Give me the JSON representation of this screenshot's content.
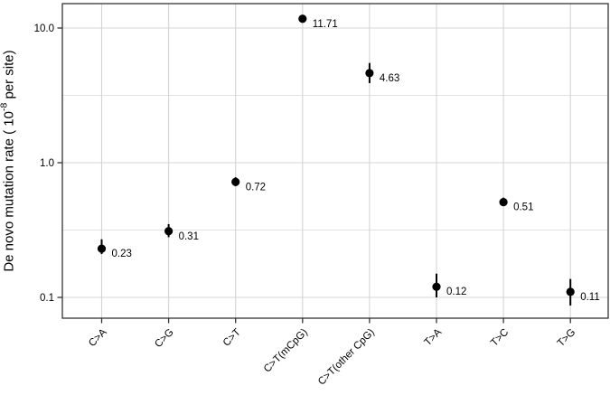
{
  "chart_data": {
    "type": "scatter",
    "title": "",
    "xlabel": "",
    "ylabel_parts": {
      "prefix": "De novo mutation rate ( 10",
      "superscript": "-8",
      "suffix": " per site)"
    },
    "yscale": "log10",
    "ylim": [
      0.07,
      15.2
    ],
    "yticks": [
      {
        "value": 10.0,
        "label": "10.0"
      },
      {
        "value": 1.0,
        "label": "1.0"
      },
      {
        "value": 0.1,
        "label": "0.1"
      }
    ],
    "minor_gridlines": [
      3.1623,
      0.31623
    ],
    "categories": [
      "C>A",
      "C>G",
      "C>T",
      "C>T(mCpG)",
      "C>T(other CpG)",
      "T>A",
      "T>C",
      "T>G"
    ],
    "points": [
      {
        "category": "C>A",
        "value": 0.23,
        "label": "0.23",
        "ci_low": 0.21,
        "ci_high": 0.27
      },
      {
        "category": "C>G",
        "value": 0.31,
        "label": "0.31",
        "ci_low": 0.28,
        "ci_high": 0.35
      },
      {
        "category": "C>T",
        "value": 0.72,
        "label": "0.72",
        "ci_low": 0.67,
        "ci_high": 0.78
      },
      {
        "category": "C>T(mCpG)",
        "value": 11.71,
        "label": "11.71",
        "ci_low": 11.2,
        "ci_high": 12.3
      },
      {
        "category": "C>T(other CpG)",
        "value": 4.63,
        "label": "4.63",
        "ci_low": 3.9,
        "ci_high": 5.5
      },
      {
        "category": "T>A",
        "value": 0.12,
        "label": "0.12",
        "ci_low": 0.1,
        "ci_high": 0.15
      },
      {
        "category": "T>C",
        "value": 0.51,
        "label": "0.51",
        "ci_low": 0.48,
        "ci_high": 0.55
      },
      {
        "category": "T>G",
        "value": 0.11,
        "label": "0.11",
        "ci_low": 0.087,
        "ci_high": 0.137
      }
    ],
    "legend": null,
    "grid": true,
    "colors": {
      "point": "#000000",
      "error_bar": "#000000",
      "grid_major": "#d4d4d4",
      "grid_minor": "#d9d9d9",
      "panel_border": "#333333",
      "tick": "#333333",
      "background": "#ffffff",
      "text": "#000000"
    }
  }
}
